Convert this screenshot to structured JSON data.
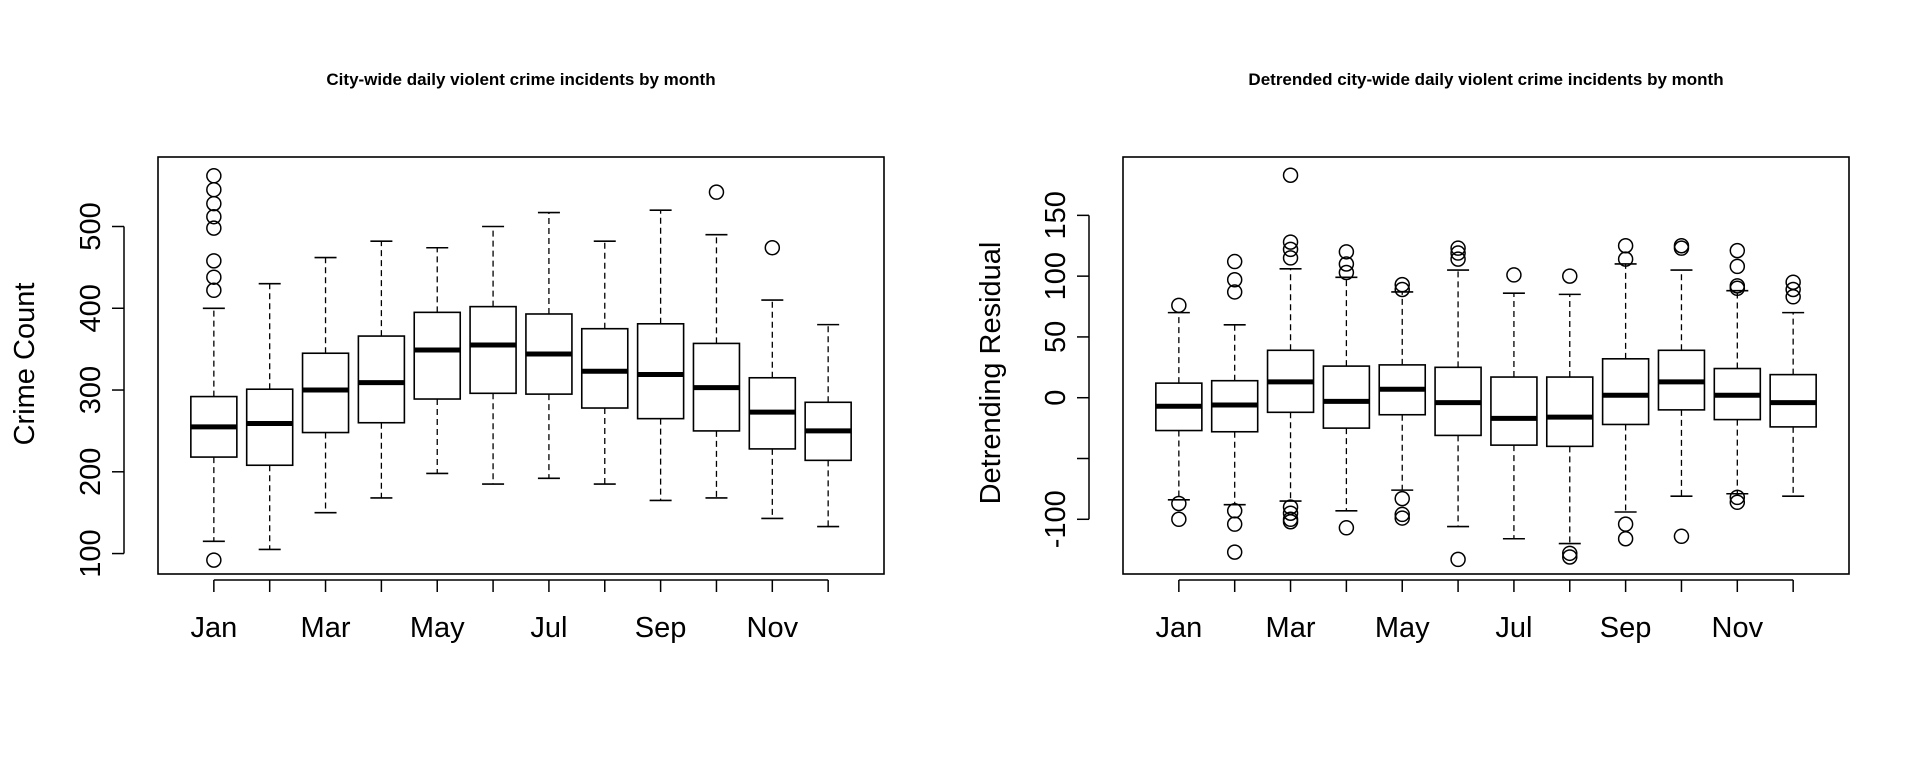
{
  "chart_data": [
    {
      "type": "boxplot",
      "title": "City-wide daily violent crime incidents by month",
      "xlabel": "",
      "ylabel": "Crime Count",
      "ylim": [
        75,
        585
      ],
      "yticks": [
        100,
        200,
        300,
        400,
        500
      ],
      "categories": [
        "Jan",
        "Feb",
        "Mar",
        "Apr",
        "May",
        "Jun",
        "Jul",
        "Aug",
        "Sep",
        "Oct",
        "Nov",
        "Dec"
      ],
      "xtick_labels": [
        "Jan",
        "",
        "Mar",
        "",
        "May",
        "",
        "Jul",
        "",
        "Sep",
        "",
        "Nov",
        ""
      ],
      "boxes": [
        {
          "min": 115,
          "q1": 218,
          "median": 255,
          "q3": 292,
          "max": 400,
          "outliers": [
            92,
            422,
            438,
            458,
            498,
            512,
            528,
            545,
            562
          ]
        },
        {
          "min": 105,
          "q1": 208,
          "median": 259,
          "q3": 301,
          "max": 430,
          "outliers": []
        },
        {
          "min": 150,
          "q1": 248,
          "median": 300,
          "q3": 345,
          "max": 462,
          "outliers": []
        },
        {
          "min": 168,
          "q1": 260,
          "median": 309,
          "q3": 366,
          "max": 482,
          "outliers": []
        },
        {
          "min": 198,
          "q1": 289,
          "median": 349,
          "q3": 395,
          "max": 474,
          "outliers": []
        },
        {
          "min": 185,
          "q1": 296,
          "median": 355,
          "q3": 402,
          "max": 500,
          "outliers": []
        },
        {
          "min": 192,
          "q1": 295,
          "median": 344,
          "q3": 393,
          "max": 517,
          "outliers": []
        },
        {
          "min": 185,
          "q1": 278,
          "median": 323,
          "q3": 375,
          "max": 482,
          "outliers": []
        },
        {
          "min": 165,
          "q1": 265,
          "median": 319,
          "q3": 381,
          "max": 520,
          "outliers": []
        },
        {
          "min": 168,
          "q1": 250,
          "median": 303,
          "q3": 357,
          "max": 490,
          "outliers": [
            542
          ]
        },
        {
          "min": 143,
          "q1": 228,
          "median": 273,
          "q3": 315,
          "max": 410,
          "outliers": [
            474
          ]
        },
        {
          "min": 133,
          "q1": 214,
          "median": 250,
          "q3": 285,
          "max": 380,
          "outliers": []
        }
      ]
    },
    {
      "type": "boxplot",
      "title": "Detrended city-wide daily violent crime incidents by month",
      "xlabel": "",
      "ylabel": "Detrending Residual",
      "ylim": [
        -145,
        198
      ],
      "yticks": [
        -100,
        -50,
        0,
        50,
        100,
        150
      ],
      "ytick_labels": [
        "-100",
        "",
        "0",
        "50",
        "100",
        "150"
      ],
      "categories": [
        "Jan",
        "Feb",
        "Mar",
        "Apr",
        "May",
        "Jun",
        "Jul",
        "Aug",
        "Sep",
        "Oct",
        "Nov",
        "Dec"
      ],
      "xtick_labels": [
        "Jan",
        "",
        "Mar",
        "",
        "May",
        "",
        "Jul",
        "",
        "Sep",
        "",
        "Nov",
        ""
      ],
      "boxes": [
        {
          "min": -84,
          "q1": -27,
          "median": -7,
          "q3": 12,
          "max": 70,
          "outliers": [
            -87,
            -100,
            76
          ]
        },
        {
          "min": -88,
          "q1": -28,
          "median": -6,
          "q3": 14,
          "max": 60,
          "outliers": [
            -93,
            -104,
            -127,
            87,
            97,
            112
          ]
        },
        {
          "min": -85,
          "q1": -12,
          "median": 13,
          "q3": 39,
          "max": 106,
          "outliers": [
            -90,
            -95,
            -100,
            -102,
            115,
            122,
            128,
            183
          ]
        },
        {
          "min": -93,
          "q1": -25,
          "median": -3,
          "q3": 26,
          "max": 99,
          "outliers": [
            -107,
            103,
            110,
            120
          ]
        },
        {
          "min": -76,
          "q1": -14,
          "median": 7,
          "q3": 27,
          "max": 87,
          "outliers": [
            -83,
            -96,
            -99,
            89,
            93
          ]
        },
        {
          "min": -106,
          "q1": -31,
          "median": -4,
          "q3": 25,
          "max": 105,
          "outliers": [
            -133,
            114,
            119,
            123
          ]
        },
        {
          "min": -116,
          "q1": -39,
          "median": -17,
          "q3": 17,
          "max": 86,
          "outliers": [
            101
          ]
        },
        {
          "min": -120,
          "q1": -40,
          "median": -16,
          "q3": 17,
          "max": 85,
          "outliers": [
            -128,
            -131,
            100
          ]
        },
        {
          "min": -94,
          "q1": -22,
          "median": 2,
          "q3": 32,
          "max": 110,
          "outliers": [
            -104,
            -116,
            114,
            125
          ]
        },
        {
          "min": -81,
          "q1": -10,
          "median": 13,
          "q3": 39,
          "max": 105,
          "outliers": [
            -114,
            123,
            125
          ]
        },
        {
          "min": -79,
          "q1": -18,
          "median": 2,
          "q3": 24,
          "max": 88,
          "outliers": [
            -82,
            -86,
            90,
            92,
            108,
            121
          ]
        },
        {
          "min": -81,
          "q1": -24,
          "median": -4,
          "q3": 19,
          "max": 70,
          "outliers": [
            83,
            89,
            95
          ]
        }
      ]
    }
  ]
}
